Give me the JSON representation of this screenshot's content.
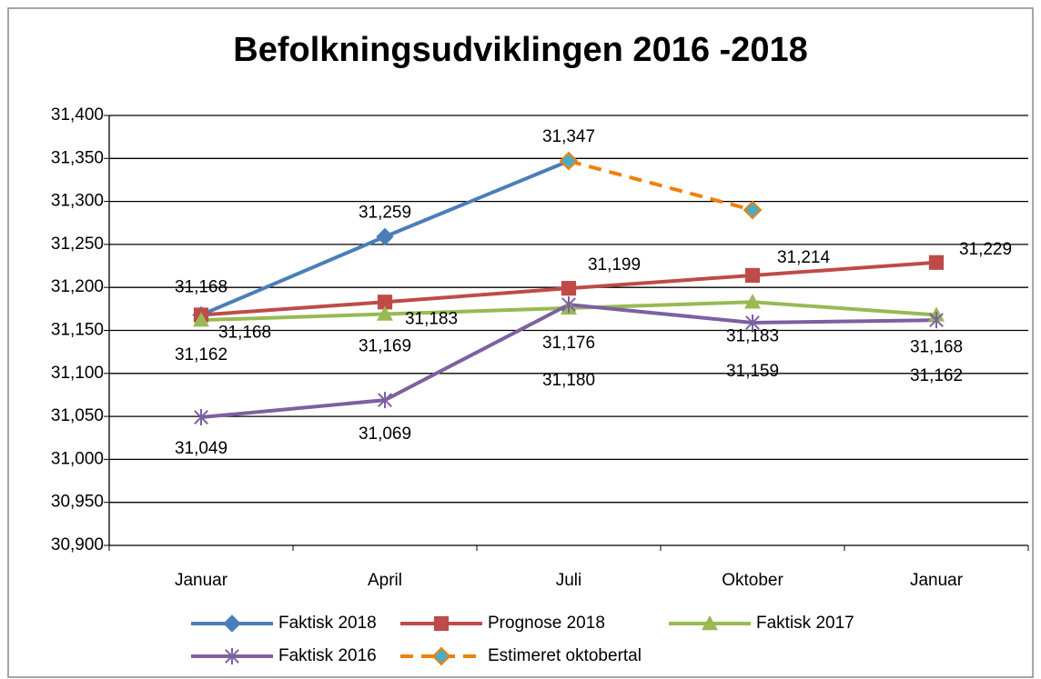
{
  "chart_data": {
    "type": "line",
    "title": "Befolkningsudviklingen 2016 -2018",
    "categories": [
      "Januar",
      "April",
      "Juli",
      "Oktober",
      "Januar"
    ],
    "ylim": [
      30900,
      31400
    ],
    "yticks": [
      {
        "value": 30900,
        "label": "30,900"
      },
      {
        "value": 30950,
        "label": "30,950"
      },
      {
        "value": 31000,
        "label": "31,000"
      },
      {
        "value": 31050,
        "label": "31,050"
      },
      {
        "value": 31100,
        "label": "31,100"
      },
      {
        "value": 31150,
        "label": "31,150"
      },
      {
        "value": 31200,
        "label": "31,200"
      },
      {
        "value": 31250,
        "label": "31,250"
      },
      {
        "value": 31300,
        "label": "31,300"
      },
      {
        "value": 31350,
        "label": "31,350"
      },
      {
        "value": 31400,
        "label": "31,400"
      }
    ],
    "grid": true,
    "legend": "bottom",
    "series": [
      {
        "name": "Faktisk 2018",
        "color": "#4a7ebb",
        "marker": "diamond",
        "values": [
          31168,
          31259,
          31347,
          null,
          null
        ],
        "value_labels": [
          "31,168",
          "31,259",
          "31,347",
          null,
          null
        ]
      },
      {
        "name": "Prognose 2018",
        "color": "#be4b48",
        "marker": "square",
        "values": [
          31168,
          31183,
          31199,
          31214,
          31229
        ],
        "value_labels": [
          "31,168",
          "31,183",
          "31,199",
          "31,214",
          "31,229"
        ]
      },
      {
        "name": "Faktisk 2017",
        "color": "#98b954",
        "marker": "triangle",
        "values": [
          31162,
          31169,
          31176,
          31183,
          31168
        ],
        "value_labels": [
          "31,162",
          "31,169",
          "31,176",
          "31,183",
          "31,168"
        ]
      },
      {
        "name": "Faktisk 2016",
        "color": "#7d60a0",
        "marker": "star",
        "values": [
          31049,
          31069,
          31180,
          31159,
          31162
        ],
        "value_labels": [
          "31,049",
          "31,069",
          "31,180",
          "31,159",
          "31,162"
        ]
      },
      {
        "name": "Estimeret oktobertal",
        "color": "#f07f09",
        "marker": "diamond",
        "marker_color": "#4bacc6",
        "dashed": true,
        "values": [
          null,
          null,
          31347,
          31290,
          null
        ]
      }
    ]
  }
}
